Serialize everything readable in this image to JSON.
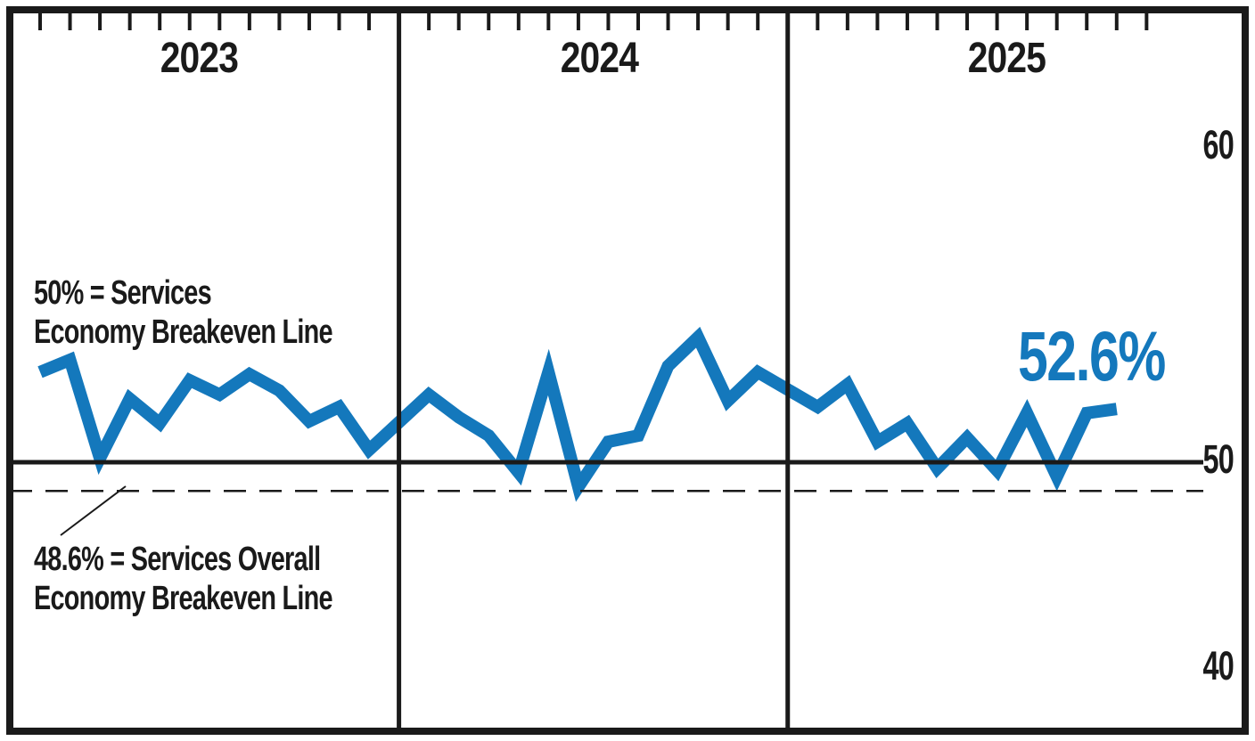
{
  "chart_data": {
    "type": "line",
    "years": [
      {
        "label": "2023",
        "monthly_values": [
          54.4,
          55.0,
          50.2,
          53.1,
          51.9,
          54.0,
          53.3,
          54.3,
          53.5,
          52.0,
          52.7,
          50.6
        ]
      },
      {
        "label": "2024",
        "monthly_values": [
          53.3,
          52.2,
          51.3,
          49.5,
          54.4,
          48.8,
          51.0,
          51.3,
          54.7,
          56.1,
          53.0,
          54.4
        ]
      },
      {
        "label": "2025",
        "monthly_values": [
          52.7,
          53.8,
          51.0,
          51.9,
          49.7,
          51.2,
          49.6,
          52.4,
          49.3,
          52.4,
          52.6
        ]
      }
    ],
    "right_axis_ticks": [
      "60",
      "50",
      "40"
    ],
    "axis_range_visible": [
      40,
      60
    ],
    "reference_lines": [
      {
        "value": 50,
        "style": "solid",
        "label_line1": "50% = Services",
        "label_line2": "Economy Breakeven Line"
      },
      {
        "value": 48.6,
        "style": "dashed",
        "label_line1": "48.6% = Services Overall",
        "label_line2": "Economy Breakeven Line"
      }
    ],
    "latest_value_label": "52.6%",
    "grid": "off",
    "legend": "none",
    "colors": {
      "line": "#1478BC",
      "ink": "#1a1a1a",
      "latest_value": "#1478BC"
    }
  }
}
